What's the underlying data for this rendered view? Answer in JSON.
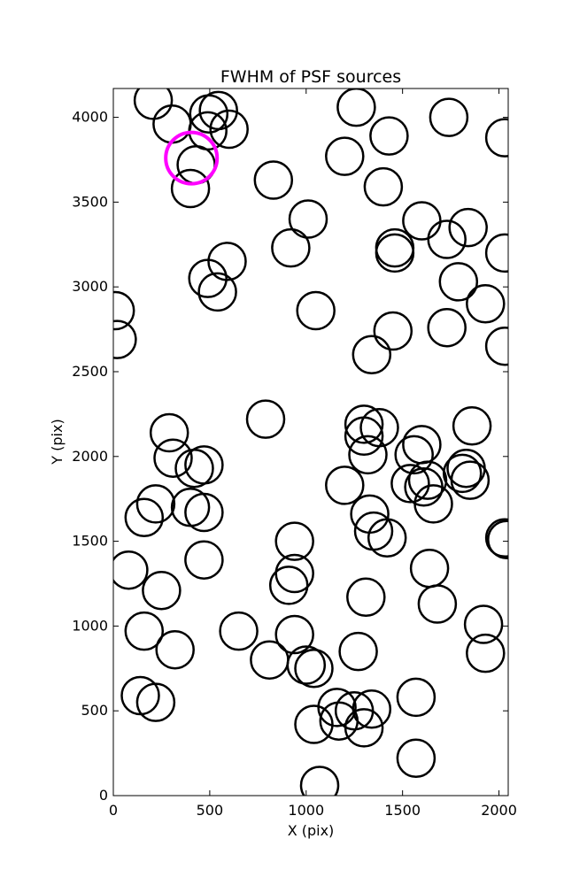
{
  "chart_data": {
    "type": "scatter",
    "title": "FWHM of PSF sources",
    "xlabel": "X (pix)",
    "ylabel": "Y (pix)",
    "xlim": [
      0,
      2048
    ],
    "ylim": [
      0,
      4170
    ],
    "xticks": [
      0,
      500,
      1000,
      1500,
      2000
    ],
    "yticks": [
      0,
      500,
      1000,
      1500,
      2000,
      2500,
      3000,
      3500,
      4000
    ],
    "grid": false,
    "marker": "open-circle",
    "marker_color": "#000000",
    "highlight_color": "#ff00ff",
    "sources": [
      {
        "x": 207,
        "y": 4100
      },
      {
        "x": 305,
        "y": 3960
      },
      {
        "x": 495,
        "y": 4020
      },
      {
        "x": 545,
        "y": 4040
      },
      {
        "x": 600,
        "y": 3930
      },
      {
        "x": 490,
        "y": 3920
      },
      {
        "x": 430,
        "y": 3720
      },
      {
        "x": 400,
        "y": 3580
      },
      {
        "x": 830,
        "y": 3630
      },
      {
        "x": 1260,
        "y": 4060
      },
      {
        "x": 1430,
        "y": 3890
      },
      {
        "x": 1200,
        "y": 3770
      },
      {
        "x": 1400,
        "y": 3590
      },
      {
        "x": 1740,
        "y": 4000
      },
      {
        "x": 2030,
        "y": 3880
      },
      {
        "x": 1010,
        "y": 3400
      },
      {
        "x": 920,
        "y": 3230
      },
      {
        "x": 1600,
        "y": 3390
      },
      {
        "x": 1460,
        "y": 3230
      },
      {
        "x": 1460,
        "y": 3200
      },
      {
        "x": 1730,
        "y": 3280
      },
      {
        "x": 1840,
        "y": 3350
      },
      {
        "x": 2030,
        "y": 3200
      },
      {
        "x": 590,
        "y": 3150
      },
      {
        "x": 490,
        "y": 3050
      },
      {
        "x": 540,
        "y": 2970
      },
      {
        "x": 1050,
        "y": 2860
      },
      {
        "x": 1790,
        "y": 3030
      },
      {
        "x": 1930,
        "y": 2900
      },
      {
        "x": 10,
        "y": 2860
      },
      {
        "x": 20,
        "y": 2690
      },
      {
        "x": 1450,
        "y": 2740
      },
      {
        "x": 1340,
        "y": 2600
      },
      {
        "x": 1730,
        "y": 2760
      },
      {
        "x": 2030,
        "y": 2650
      },
      {
        "x": 790,
        "y": 2220
      },
      {
        "x": 290,
        "y": 2140
      },
      {
        "x": 310,
        "y": 1990
      },
      {
        "x": 420,
        "y": 1930
      },
      {
        "x": 470,
        "y": 1950
      },
      {
        "x": 1300,
        "y": 2190
      },
      {
        "x": 1380,
        "y": 2170
      },
      {
        "x": 1300,
        "y": 2120
      },
      {
        "x": 1320,
        "y": 2010
      },
      {
        "x": 1200,
        "y": 1830
      },
      {
        "x": 1560,
        "y": 2010
      },
      {
        "x": 1600,
        "y": 2070
      },
      {
        "x": 1540,
        "y": 1840
      },
      {
        "x": 1630,
        "y": 1860
      },
      {
        "x": 1610,
        "y": 1820
      },
      {
        "x": 1660,
        "y": 1720
      },
      {
        "x": 1830,
        "y": 1930
      },
      {
        "x": 1810,
        "y": 1900
      },
      {
        "x": 1860,
        "y": 2180
      },
      {
        "x": 1850,
        "y": 1860
      },
      {
        "x": 160,
        "y": 1640
      },
      {
        "x": 220,
        "y": 1720
      },
      {
        "x": 400,
        "y": 1700
      },
      {
        "x": 470,
        "y": 1670
      },
      {
        "x": 1330,
        "y": 1660
      },
      {
        "x": 1350,
        "y": 1560
      },
      {
        "x": 1420,
        "y": 1520
      },
      {
        "x": 2030,
        "y": 1520
      },
      {
        "x": 2040,
        "y": 1510
      },
      {
        "x": 940,
        "y": 1500
      },
      {
        "x": 940,
        "y": 1310
      },
      {
        "x": 910,
        "y": 1240
      },
      {
        "x": 80,
        "y": 1330
      },
      {
        "x": 250,
        "y": 1210
      },
      {
        "x": 470,
        "y": 1390
      },
      {
        "x": 1640,
        "y": 1340
      },
      {
        "x": 1310,
        "y": 1170
      },
      {
        "x": 1680,
        "y": 1130
      },
      {
        "x": 160,
        "y": 970
      },
      {
        "x": 320,
        "y": 860
      },
      {
        "x": 650,
        "y": 970
      },
      {
        "x": 810,
        "y": 800
      },
      {
        "x": 940,
        "y": 950
      },
      {
        "x": 1000,
        "y": 770
      },
      {
        "x": 1040,
        "y": 750
      },
      {
        "x": 1270,
        "y": 850
      },
      {
        "x": 1920,
        "y": 1010
      },
      {
        "x": 1930,
        "y": 840
      },
      {
        "x": 140,
        "y": 590
      },
      {
        "x": 220,
        "y": 550
      },
      {
        "x": 1040,
        "y": 420
      },
      {
        "x": 1160,
        "y": 520
      },
      {
        "x": 1170,
        "y": 440
      },
      {
        "x": 1250,
        "y": 500
      },
      {
        "x": 1340,
        "y": 510
      },
      {
        "x": 1300,
        "y": 400
      },
      {
        "x": 1570,
        "y": 580
      },
      {
        "x": 1570,
        "y": 220
      },
      {
        "x": 1070,
        "y": 60
      }
    ],
    "highlight_sources": [
      {
        "x": 405,
        "y": 3760
      }
    ]
  }
}
